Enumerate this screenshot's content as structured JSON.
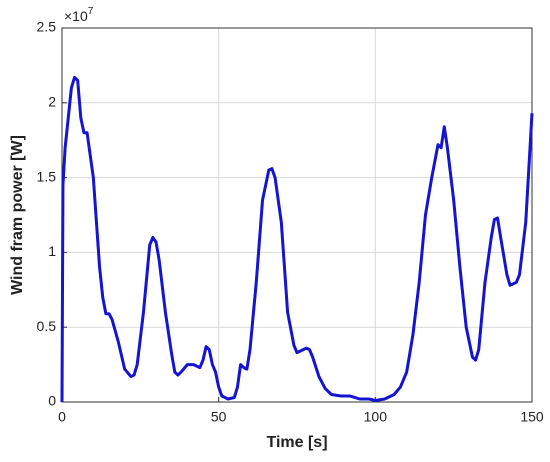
{
  "chart_data": {
    "type": "line",
    "xlabel": "Time [s]",
    "ylabel": "Wind fram power [W]",
    "y_multiplier": {
      "base": "×10",
      "exponent": "7"
    },
    "xlim": [
      0,
      150
    ],
    "xticks": [
      0,
      50,
      100,
      150
    ],
    "ylim": [
      0,
      2.5
    ],
    "yticks": [
      0,
      0.5,
      1,
      1.5,
      2,
      2.5
    ],
    "grid": true,
    "x": [
      0,
      0.3,
      1,
      3,
      4,
      5,
      6,
      7,
      8,
      10,
      12,
      13,
      14,
      15,
      16,
      18,
      20,
      22,
      23,
      24,
      26,
      28,
      29,
      30,
      31,
      33,
      35,
      36,
      37,
      38,
      40,
      42,
      44,
      45,
      46,
      47,
      48,
      49,
      50,
      51,
      53,
      55,
      56,
      57,
      58,
      59,
      60,
      62,
      64,
      66,
      67,
      68,
      70,
      72,
      74,
      75,
      76,
      78,
      79,
      80,
      82,
      84,
      86,
      89,
      92,
      95,
      98,
      100,
      103,
      106,
      108,
      110,
      112,
      114,
      116,
      118,
      120,
      121,
      122,
      123,
      125,
      127,
      129,
      131,
      132,
      133,
      135,
      137,
      138,
      139,
      140,
      142,
      143,
      145,
      146,
      148,
      150
    ],
    "series": [
      {
        "color": "#1414d2",
        "values": [
          0,
          1.45,
          1.7,
          2.1,
          2.17,
          2.15,
          1.9,
          1.8,
          1.8,
          1.5,
          0.9,
          0.7,
          0.59,
          0.59,
          0.55,
          0.4,
          0.22,
          0.17,
          0.18,
          0.25,
          0.6,
          1.05,
          1.1,
          1.07,
          0.95,
          0.6,
          0.32,
          0.2,
          0.18,
          0.2,
          0.25,
          0.25,
          0.23,
          0.28,
          0.37,
          0.35,
          0.25,
          0.2,
          0.1,
          0.04,
          0.02,
          0.03,
          0.1,
          0.25,
          0.23,
          0.22,
          0.35,
          0.8,
          1.35,
          1.55,
          1.56,
          1.5,
          1.2,
          0.6,
          0.38,
          0.33,
          0.34,
          0.36,
          0.35,
          0.3,
          0.17,
          0.09,
          0.05,
          0.04,
          0.04,
          0.02,
          0.02,
          0.01,
          0.02,
          0.05,
          0.1,
          0.2,
          0.45,
          0.8,
          1.25,
          1.5,
          1.72,
          1.7,
          1.84,
          1.7,
          1.35,
          0.9,
          0.5,
          0.3,
          0.28,
          0.35,
          0.8,
          1.1,
          1.22,
          1.23,
          1.1,
          0.85,
          0.78,
          0.8,
          0.85,
          1.2,
          1.93
        ]
      }
    ]
  }
}
